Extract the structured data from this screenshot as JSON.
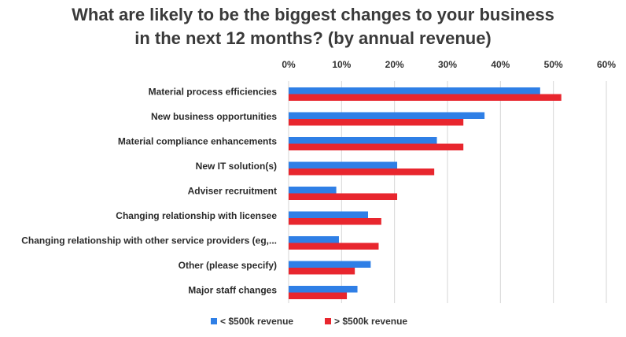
{
  "chart_data": {
    "type": "bar",
    "orientation": "horizontal",
    "title_line1": "What are likely to be the biggest changes to your business",
    "title_line2": "in the next 12 months? (by annual revenue)",
    "categories": [
      "Material process efficiencies",
      "New business opportunities",
      "Material compliance enhancements",
      "New IT solution(s)",
      "Adviser recruitment",
      "Changing relationship with licensee",
      "Changing relationship with other service providers (eg,...",
      "Other (please specify)",
      "Major staff changes"
    ],
    "series": [
      {
        "name": "< $500k revenue",
        "color": "#2f7fe6",
        "values": [
          47.5,
          37,
          28,
          20.5,
          9,
          15,
          9.5,
          15.5,
          13
        ]
      },
      {
        "name": "> $500k revenue",
        "color": "#e8262e",
        "values": [
          51.5,
          33,
          33,
          27.5,
          20.5,
          17.5,
          17,
          12.5,
          11
        ]
      }
    ],
    "xlim": [
      0,
      60
    ],
    "xticks": [
      "0%",
      "10%",
      "20%",
      "30%",
      "40%",
      "50%",
      "60%"
    ],
    "xtick_values": [
      0,
      10,
      20,
      30,
      40,
      50,
      60
    ],
    "grid": true,
    "legend_position": "bottom"
  }
}
